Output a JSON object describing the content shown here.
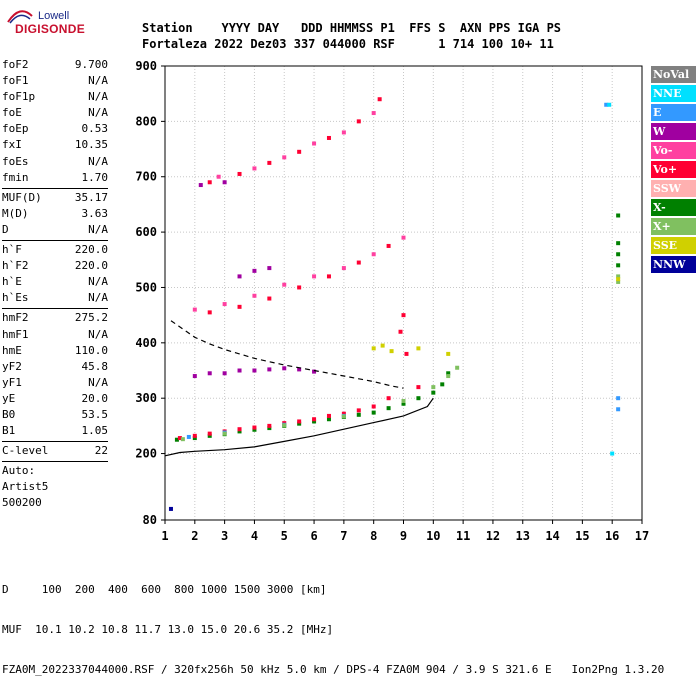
{
  "logo": {
    "top": "Lowell",
    "main": "DIGISONDE"
  },
  "header": {
    "labels": "Station    YYYY DAY   DDD HHMMSS P1  FFS S  AXN PPS IGA PS",
    "values": "Fortaleza 2022 Dez03 337 044000 RSF      1 714 100 10+ 11"
  },
  "params": {
    "group1": [
      {
        "label": "foF2",
        "value": "9.700"
      },
      {
        "label": "foF1",
        "value": "N/A"
      },
      {
        "label": "foF1p",
        "value": "N/A"
      },
      {
        "label": "foE",
        "value": "N/A"
      },
      {
        "label": "foEp",
        "value": "0.53"
      },
      {
        "label": "fxI",
        "value": "10.35"
      },
      {
        "label": "foEs",
        "value": "N/A"
      },
      {
        "label": "fmin",
        "value": "1.70"
      }
    ],
    "group2": [
      {
        "label": "MUF(D)",
        "value": "35.17"
      },
      {
        "label": "M(D)",
        "value": "3.63"
      },
      {
        "label": "D",
        "value": "N/A"
      }
    ],
    "group3": [
      {
        "label": "h`F",
        "value": "220.0"
      },
      {
        "label": "h`F2",
        "value": "220.0"
      },
      {
        "label": "h`E",
        "value": "N/A"
      },
      {
        "label": "h`Es",
        "value": "N/A"
      }
    ],
    "group4": [
      {
        "label": "hmF2",
        "value": "275.2"
      },
      {
        "label": "hmF1",
        "value": "N/A"
      },
      {
        "label": "hmE",
        "value": "110.0"
      },
      {
        "label": "yF2",
        "value": "45.8"
      },
      {
        "label": "yF1",
        "value": "N/A"
      },
      {
        "label": "yE",
        "value": "20.0"
      },
      {
        "label": "B0",
        "value": "53.5"
      },
      {
        "label": "B1",
        "value": "1.05"
      }
    ],
    "group5": [
      {
        "label": "C-level",
        "value": "22"
      }
    ],
    "auto_lines": [
      "Auto:",
      "Artist5",
      "500200"
    ]
  },
  "legend": [
    {
      "label": "NoVal",
      "bg": "#808080",
      "fg": "#ffffff"
    },
    {
      "label": "NNE",
      "bg": "#00e0ff",
      "fg": "#ffffff"
    },
    {
      "label": "E",
      "bg": "#3399ff",
      "fg": "#ffffff"
    },
    {
      "label": "W",
      "bg": "#a000a0",
      "fg": "#ffffff"
    },
    {
      "label": "Vo-",
      "bg": "#ff40a0",
      "fg": "#ffffff"
    },
    {
      "label": "Vo+",
      "bg": "#ff0033",
      "fg": "#ffffff"
    },
    {
      "label": "SSW",
      "bg": "#ffb0b0",
      "fg": "#ffffff"
    },
    {
      "label": "X-",
      "bg": "#008000",
      "fg": "#ffffff"
    },
    {
      "label": "X+",
      "bg": "#80c060",
      "fg": "#ffffff"
    },
    {
      "label": "SSE",
      "bg": "#d0d000",
      "fg": "#ffffff"
    },
    {
      "label": "NNW",
      "bg": "#000099",
      "fg": "#ffffff"
    }
  ],
  "footer": {
    "line1": "D     100  200  400  600  800 1000 1500 3000 [km]",
    "line2": "MUF  10.1 10.2 10.8 11.7 13.0 15.0 20.6 35.2 [MHz]",
    "line3": "FZA0M_2022337044000.RSF / 320fx256h 50 kHz 5.0 km / DPS-4 FZA0M 904 / 3.9 S 321.6 E   Ion2Png 1.3.20"
  },
  "chart_data": {
    "type": "scatter",
    "title": "",
    "xlabel": "",
    "ylabel": "",
    "xlim": [
      1,
      17
    ],
    "ylim": [
      80,
      900
    ],
    "xticks": [
      1,
      2,
      3,
      4,
      5,
      6,
      7,
      8,
      9,
      10,
      11,
      12,
      13,
      14,
      15,
      16,
      17
    ],
    "yticks": [
      80,
      200,
      300,
      400,
      500,
      600,
      700,
      800,
      900
    ],
    "grid": true,
    "series": [
      {
        "name": "X-",
        "color": "#008000",
        "points": [
          [
            1.4,
            225
          ],
          [
            2.0,
            228
          ],
          [
            2.5,
            232
          ],
          [
            3.0,
            235
          ],
          [
            3.5,
            240
          ],
          [
            4.0,
            243
          ],
          [
            4.5,
            246
          ],
          [
            5.0,
            250
          ],
          [
            5.5,
            254
          ],
          [
            6.0,
            258
          ],
          [
            6.5,
            262
          ],
          [
            7.0,
            266
          ],
          [
            7.5,
            270
          ],
          [
            8.0,
            274
          ],
          [
            8.5,
            282
          ],
          [
            9.0,
            290
          ],
          [
            9.5,
            300
          ],
          [
            10.0,
            310
          ],
          [
            10.3,
            325
          ],
          [
            10.5,
            345
          ],
          [
            16.2,
            630
          ],
          [
            16.2,
            580
          ],
          [
            16.2,
            560
          ],
          [
            16.2,
            540
          ]
        ]
      },
      {
        "name": "Vo+",
        "color": "#ff0033",
        "points": [
          [
            1.5,
            228
          ],
          [
            2.0,
            232
          ],
          [
            2.5,
            236
          ],
          [
            3.0,
            240
          ],
          [
            3.5,
            244
          ],
          [
            4.0,
            247
          ],
          [
            4.5,
            250
          ],
          [
            5.0,
            255
          ],
          [
            5.5,
            258
          ],
          [
            6.0,
            262
          ],
          [
            6.5,
            268
          ],
          [
            7.0,
            272
          ],
          [
            7.5,
            278
          ],
          [
            8.0,
            285
          ],
          [
            8.5,
            300
          ],
          [
            8.9,
            420
          ],
          [
            9.0,
            450
          ],
          [
            9.1,
            380
          ],
          [
            9.5,
            320
          ],
          [
            2.5,
            455
          ],
          [
            3.5,
            465
          ],
          [
            4.5,
            480
          ],
          [
            5.5,
            500
          ],
          [
            6.5,
            520
          ],
          [
            7.5,
            545
          ],
          [
            8.5,
            575
          ],
          [
            2.5,
            690
          ],
          [
            3.5,
            705
          ],
          [
            4.5,
            725
          ],
          [
            5.5,
            745
          ],
          [
            6.5,
            770
          ],
          [
            7.5,
            800
          ],
          [
            8.2,
            840
          ]
        ]
      },
      {
        "name": "Vo-",
        "color": "#ff40a0",
        "points": [
          [
            2.0,
            460
          ],
          [
            3.0,
            470
          ],
          [
            4.0,
            485
          ],
          [
            5.0,
            505
          ],
          [
            6.0,
            520
          ],
          [
            7.0,
            535
          ],
          [
            8.0,
            560
          ],
          [
            9.0,
            590
          ],
          [
            2.8,
            700
          ],
          [
            4.0,
            715
          ],
          [
            5.0,
            735
          ],
          [
            6.0,
            760
          ],
          [
            7.0,
            780
          ],
          [
            8.0,
            815
          ]
        ]
      },
      {
        "name": "W",
        "color": "#a000a0",
        "points": [
          [
            2.0,
            340
          ],
          [
            2.5,
            345
          ],
          [
            3.0,
            345
          ],
          [
            3.5,
            350
          ],
          [
            4.0,
            350
          ],
          [
            4.5,
            352
          ],
          [
            5.0,
            354
          ],
          [
            5.5,
            352
          ],
          [
            6.0,
            348
          ],
          [
            2.2,
            685
          ],
          [
            3.0,
            690
          ],
          [
            3.5,
            520
          ],
          [
            4.0,
            530
          ],
          [
            4.5,
            535
          ]
        ]
      },
      {
        "name": "E",
        "color": "#3399ff",
        "points": [
          [
            1.8,
            230
          ],
          [
            3.0,
            238
          ],
          [
            5.0,
            252
          ],
          [
            7.0,
            268
          ],
          [
            15.8,
            830
          ],
          [
            16.2,
            300
          ],
          [
            16.2,
            280
          ]
        ]
      },
      {
        "name": "X+",
        "color": "#80c060",
        "points": [
          [
            1.6,
            226
          ],
          [
            3.0,
            236
          ],
          [
            5.0,
            251
          ],
          [
            7.0,
            267
          ],
          [
            9.0,
            295
          ],
          [
            10.0,
            320
          ],
          [
            10.5,
            340
          ],
          [
            10.8,
            355
          ],
          [
            16.2,
            520
          ],
          [
            16.2,
            510
          ]
        ]
      },
      {
        "name": "SSE",
        "color": "#d0d000",
        "points": [
          [
            8.0,
            390
          ],
          [
            8.3,
            395
          ],
          [
            8.6,
            385
          ],
          [
            9.5,
            390
          ],
          [
            10.5,
            380
          ],
          [
            16.2,
            515
          ]
        ]
      },
      {
        "name": "NNE",
        "color": "#00e0ff",
        "points": [
          [
            16.0,
            200
          ],
          [
            15.9,
            830
          ]
        ]
      },
      {
        "name": "NNW",
        "color": "#000099",
        "points": [
          [
            1.2,
            100
          ]
        ]
      }
    ],
    "curves": [
      {
        "style": "solid",
        "color": "#000000",
        "points": [
          [
            1.0,
            196
          ],
          [
            1.5,
            202
          ],
          [
            2.0,
            204
          ],
          [
            3.0,
            207
          ],
          [
            4.0,
            212
          ],
          [
            5.0,
            222
          ],
          [
            6.0,
            232
          ],
          [
            7.0,
            244
          ],
          [
            8.0,
            256
          ],
          [
            9.0,
            268
          ],
          [
            9.8,
            285
          ],
          [
            10.0,
            300
          ]
        ]
      },
      {
        "style": "dashed",
        "color": "#000000",
        "points": [
          [
            1.2,
            440
          ],
          [
            1.6,
            425
          ],
          [
            2.0,
            410
          ],
          [
            2.5,
            398
          ],
          [
            3.0,
            388
          ],
          [
            3.5,
            380
          ],
          [
            4.0,
            372
          ],
          [
            4.5,
            366
          ],
          [
            5.0,
            360
          ],
          [
            6.0,
            350
          ],
          [
            7.0,
            340
          ],
          [
            8.0,
            330
          ],
          [
            8.6,
            322
          ],
          [
            9.0,
            318
          ]
        ]
      }
    ]
  }
}
